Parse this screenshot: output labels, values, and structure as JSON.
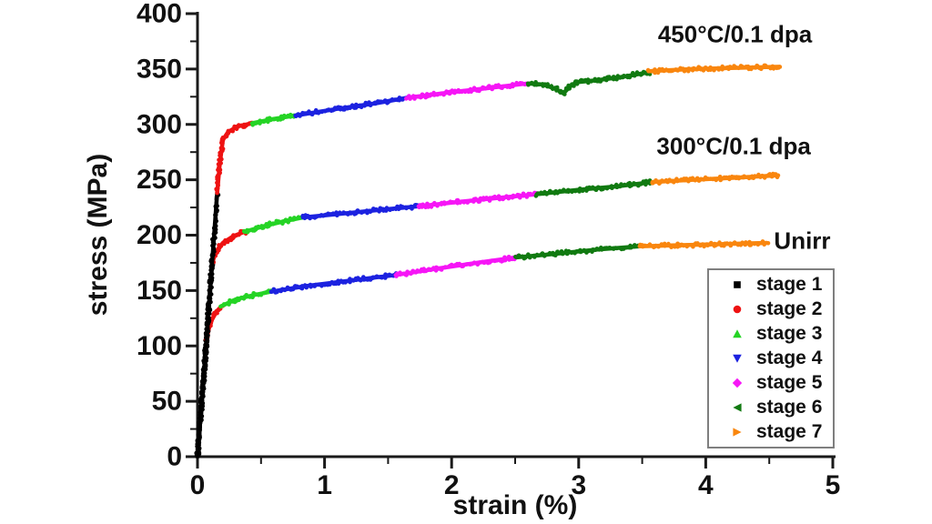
{
  "figure": {
    "background": "#ffffff",
    "text_color": "#111111",
    "axis_color": "#1a1a1a",
    "legend_border_color": "#7f7f7f"
  },
  "chart_data": {
    "type": "scatter",
    "title": "",
    "xlabel": "strain (%)",
    "ylabel": "stress (MPa)",
    "xlim": [
      0,
      5
    ],
    "ylim": [
      0,
      400
    ],
    "x_major_ticks": [
      0,
      1,
      2,
      3,
      4,
      5
    ],
    "x_minor_ticks": [
      0.5,
      1.5,
      2.5,
      3.5,
      4.5
    ],
    "y_major_ticks": [
      0,
      50,
      100,
      150,
      200,
      250,
      300,
      350,
      400
    ],
    "y_minor_ticks": [
      25,
      75,
      125,
      175,
      225,
      275,
      325,
      375
    ],
    "grid": false,
    "legend_position": "lower-right",
    "legend": [
      {
        "label": "stage 1",
        "shape": "square",
        "color": "#000000"
      },
      {
        "label": "stage 2",
        "shape": "circle",
        "color": "#ee1212"
      },
      {
        "label": "stage 3",
        "shape": "triangle-up",
        "color": "#25d425"
      },
      {
        "label": "stage 4",
        "shape": "triangle-down",
        "color": "#1c22e0"
      },
      {
        "label": "stage 5",
        "shape": "diamond",
        "color": "#f616f6"
      },
      {
        "label": "stage 6",
        "shape": "triangle-left",
        "color": "#117a11"
      },
      {
        "label": "stage 7",
        "shape": "triangle-right",
        "color": "#f9860e"
      }
    ],
    "annotations": [
      {
        "text": "450°C/0.1 dpa",
        "x": 4.23,
        "y": 381
      },
      {
        "text": "300°C/0.1 dpa",
        "x": 4.22,
        "y": 280
      },
      {
        "text": "Unirr",
        "x": 4.76,
        "y": 195
      }
    ],
    "series": [
      {
        "name": "Unirr",
        "stages": [
          {
            "stage": 1,
            "color": "#000000",
            "points": [
              [
                0,
                0
              ],
              [
                0.035,
                52
              ],
              [
                0.07,
                105
              ]
            ]
          },
          {
            "stage": 2,
            "color": "#ee1212",
            "points": [
              [
                0.07,
                105
              ],
              [
                0.09,
                116
              ],
              [
                0.115,
                124
              ],
              [
                0.15,
                131
              ],
              [
                0.19,
                136
              ]
            ]
          },
          {
            "stage": 3,
            "color": "#25d425",
            "points": [
              [
                0.19,
                136
              ],
              [
                0.3,
                142
              ],
              [
                0.45,
                146
              ],
              [
                0.58,
                149
              ]
            ]
          },
          {
            "stage": 4,
            "color": "#1c22e0",
            "points": [
              [
                0.58,
                149
              ],
              [
                0.85,
                154
              ],
              [
                1.2,
                159
              ],
              [
                1.56,
                164
              ]
            ]
          },
          {
            "stage": 5,
            "color": "#f616f6",
            "points": [
              [
                1.56,
                164
              ],
              [
                1.9,
                170
              ],
              [
                2.2,
                175
              ],
              [
                2.51,
                180
              ]
            ]
          },
          {
            "stage": 6,
            "color": "#117a11",
            "points": [
              [
                2.51,
                180
              ],
              [
                2.8,
                183
              ],
              [
                3.15,
                187
              ],
              [
                3.48,
                190
              ]
            ]
          },
          {
            "stage": 7,
            "color": "#f9860e",
            "points": [
              [
                3.48,
                190
              ],
              [
                3.8,
                191
              ],
              [
                4.15,
                192
              ],
              [
                4.48,
                193
              ]
            ]
          }
        ]
      },
      {
        "name": "300°C/0.1 dpa",
        "stages": [
          {
            "stage": 1,
            "color": "#000000",
            "points": [
              [
                0,
                0
              ],
              [
                0.06,
                88
              ],
              [
                0.115,
                175
              ]
            ]
          },
          {
            "stage": 2,
            "color": "#ee1212",
            "points": [
              [
                0.115,
                175
              ],
              [
                0.15,
                186
              ],
              [
                0.2,
                193
              ],
              [
                0.28,
                199
              ],
              [
                0.37,
                203
              ]
            ]
          },
          {
            "stage": 3,
            "color": "#25d425",
            "points": [
              [
                0.37,
                203
              ],
              [
                0.55,
                209
              ],
              [
                0.7,
                213
              ],
              [
                0.83,
                216
              ]
            ]
          },
          {
            "stage": 4,
            "color": "#1c22e0",
            "points": [
              [
                0.83,
                216
              ],
              [
                1.1,
                219
              ],
              [
                1.45,
                223
              ],
              [
                1.74,
                226
              ]
            ]
          },
          {
            "stage": 5,
            "color": "#f616f6",
            "points": [
              [
                1.74,
                226
              ],
              [
                2.05,
                230
              ],
              [
                2.4,
                234
              ],
              [
                2.67,
                237
              ]
            ]
          },
          {
            "stage": 6,
            "color": "#117a11",
            "points": [
              [
                2.67,
                237
              ],
              [
                3.0,
                241
              ],
              [
                3.3,
                244
              ],
              [
                3.58,
                248
              ]
            ]
          },
          {
            "stage": 7,
            "color": "#f9860e",
            "points": [
              [
                3.58,
                248
              ],
              [
                3.9,
                250
              ],
              [
                4.25,
                252
              ],
              [
                4.57,
                254
              ]
            ]
          }
        ]
      },
      {
        "name": "450°C/0.1 dpa",
        "stages": [
          {
            "stage": 1,
            "color": "#000000",
            "points": [
              [
                0,
                0
              ],
              [
                0.08,
                120
              ],
              [
                0.155,
                238
              ]
            ]
          },
          {
            "stage": 2,
            "color": "#ee1212",
            "points": [
              [
                0.155,
                238
              ],
              [
                0.175,
                264
              ],
              [
                0.2,
                286
              ],
              [
                0.24,
                293
              ],
              [
                0.31,
                298
              ],
              [
                0.43,
                301
              ]
            ]
          },
          {
            "stage": 3,
            "color": "#25d425",
            "points": [
              [
                0.43,
                301
              ],
              [
                0.6,
                305
              ],
              [
                0.77,
                308
              ]
            ]
          },
          {
            "stage": 4,
            "color": "#1c22e0",
            "points": [
              [
                0.77,
                308
              ],
              [
                1.1,
                314
              ],
              [
                1.4,
                319
              ],
              [
                1.65,
                324
              ]
            ]
          },
          {
            "stage": 5,
            "color": "#f616f6",
            "points": [
              [
                1.65,
                324
              ],
              [
                2.0,
                329
              ],
              [
                2.3,
                333
              ],
              [
                2.6,
                337
              ]
            ]
          },
          {
            "stage": 6,
            "color": "#117a11",
            "points": [
              [
                2.6,
                337
              ],
              [
                2.72,
                336
              ],
              [
                2.82,
                332
              ],
              [
                2.88,
                328
              ],
              [
                2.93,
                334
              ],
              [
                2.98,
                338
              ],
              [
                3.15,
                340
              ],
              [
                3.35,
                343
              ],
              [
                3.55,
                347
              ]
            ]
          },
          {
            "stage": 7,
            "color": "#f9860e",
            "points": [
              [
                3.55,
                348
              ],
              [
                3.9,
                350
              ],
              [
                4.2,
                351
              ],
              [
                4.58,
                352
              ]
            ]
          }
        ]
      }
    ]
  }
}
